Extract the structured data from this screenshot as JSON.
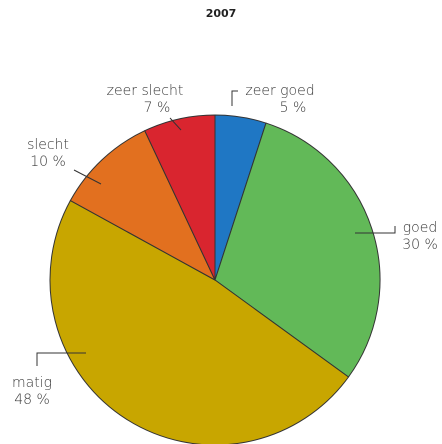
{
  "chart_data": {
    "type": "pie",
    "title": "2007",
    "categories": [
      "zeer goed",
      "goed",
      "matig",
      "slecht",
      "zeer slecht"
    ],
    "values": [
      5,
      30,
      48,
      10,
      7
    ],
    "value_labels": [
      "5 %",
      "30 %",
      "48 %",
      "10 %",
      "7 %"
    ],
    "colors": [
      "#1f77c4",
      "#62b958",
      "#c8a600",
      "#e2701f",
      "#d9252f"
    ]
  }
}
